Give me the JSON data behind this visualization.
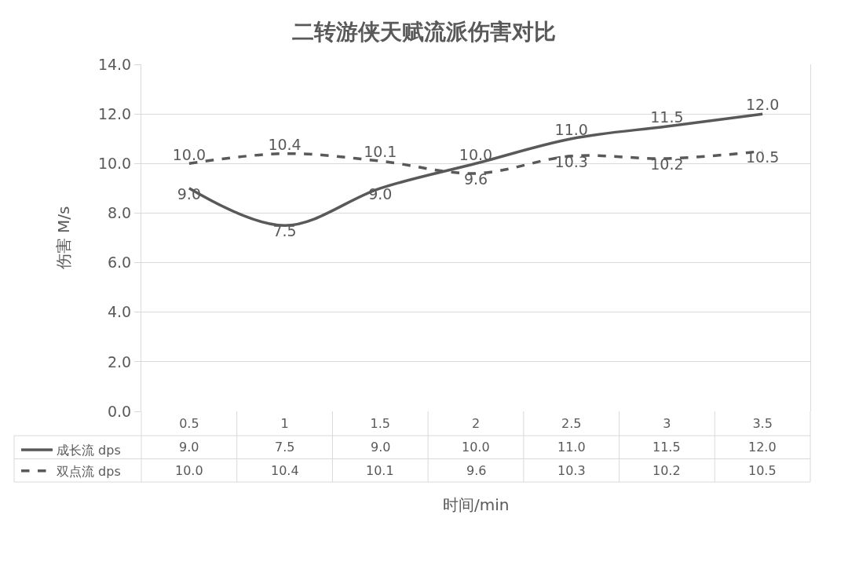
{
  "chart_data": {
    "type": "line",
    "title": "二转游侠天赋流派伤害对比",
    "xlabel": "时间/min",
    "ylabel": "伤害 M/s",
    "categories": [
      "0.5",
      "1",
      "1.5",
      "2",
      "2.5",
      "3",
      "3.5"
    ],
    "series": [
      {
        "name": "成长流 dps",
        "color": "#595959",
        "line_style": "solid",
        "values": [
          9.0,
          7.5,
          9.0,
          10.0,
          11.0,
          11.5,
          12.0
        ],
        "value_labels": [
          "9.0",
          "7.5",
          "9.0",
          "10.0",
          "11.0",
          "11.5",
          "12.0"
        ]
      },
      {
        "name": "双点流 dps",
        "color": "#595959",
        "line_style": "dashed",
        "values": [
          10.0,
          10.4,
          10.1,
          9.6,
          10.3,
          10.2,
          10.5
        ],
        "value_labels": [
          "10.0",
          "10.4",
          "10.1",
          "9.6",
          "10.3",
          "10.2",
          "10.5"
        ]
      }
    ],
    "ylim": [
      0,
      14
    ],
    "yticks": [
      {
        "value": 0,
        "label": "0.0"
      },
      {
        "value": 2,
        "label": "2.0"
      },
      {
        "value": 4,
        "label": "4.0"
      },
      {
        "value": 6,
        "label": "6.0"
      },
      {
        "value": 8,
        "label": "8.0"
      },
      {
        "value": 10,
        "label": "10.0"
      },
      {
        "value": 12,
        "label": "12.0"
      },
      {
        "value": 14,
        "label": "14.0"
      }
    ],
    "grid": "y",
    "legend": "bottom left"
  }
}
